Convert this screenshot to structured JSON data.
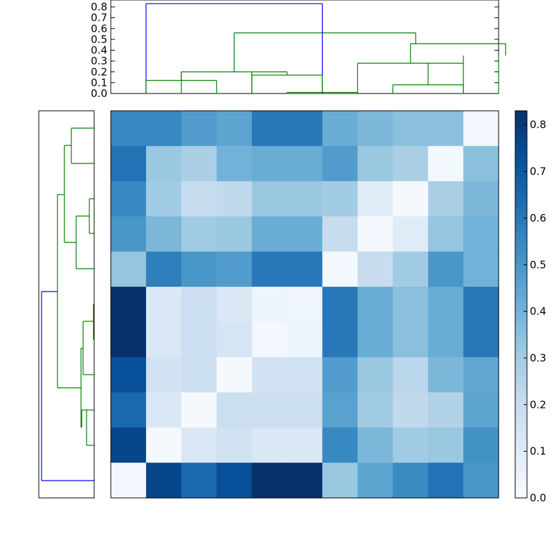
{
  "chart_data": [
    {
      "type": "heatmap",
      "rows": 11,
      "cols": 11,
      "colormap": "Blues",
      "vmin": 0.0,
      "vmax": 0.83,
      "values": [
        [
          0.55,
          0.55,
          0.48,
          0.45,
          0.6,
          0.6,
          0.42,
          0.38,
          0.35,
          0.35,
          0.02
        ],
        [
          0.62,
          0.32,
          0.28,
          0.4,
          0.42,
          0.42,
          0.48,
          0.32,
          0.28,
          0.02,
          0.35
        ],
        [
          0.55,
          0.3,
          0.2,
          0.22,
          0.32,
          0.32,
          0.3,
          0.1,
          0.01,
          0.28,
          0.38
        ],
        [
          0.5,
          0.38,
          0.3,
          0.32,
          0.42,
          0.42,
          0.2,
          0.02,
          0.1,
          0.33,
          0.4
        ],
        [
          0.33,
          0.58,
          0.5,
          0.48,
          0.6,
          0.6,
          0.02,
          0.2,
          0.3,
          0.5,
          0.4
        ],
        [
          0.83,
          0.12,
          0.18,
          0.12,
          0.04,
          0.03,
          0.6,
          0.42,
          0.35,
          0.42,
          0.6
        ],
        [
          0.83,
          0.12,
          0.18,
          0.14,
          0.02,
          0.04,
          0.6,
          0.42,
          0.35,
          0.42,
          0.6
        ],
        [
          0.73,
          0.16,
          0.18,
          0.01,
          0.16,
          0.16,
          0.48,
          0.32,
          0.24,
          0.38,
          0.44
        ],
        [
          0.65,
          0.12,
          0.01,
          0.18,
          0.18,
          0.18,
          0.46,
          0.3,
          0.22,
          0.26,
          0.45
        ],
        [
          0.76,
          0.01,
          0.12,
          0.16,
          0.12,
          0.12,
          0.55,
          0.38,
          0.3,
          0.32,
          0.52
        ],
        [
          0.02,
          0.76,
          0.65,
          0.73,
          0.83,
          0.83,
          0.32,
          0.45,
          0.54,
          0.62,
          0.5
        ]
      ]
    },
    {
      "type": "dendrogram",
      "orientation": "top",
      "ylim": [
        0,
        0.85
      ],
      "yticks": [
        "0.0",
        "0.1",
        "0.2",
        "0.3",
        "0.4",
        "0.5",
        "0.6",
        "0.7",
        "0.8"
      ],
      "links": [
        {
          "left": 1.5,
          "right": 6.5,
          "height": 0.83,
          "color": "#0000ff"
        },
        {
          "left": 4.0,
          "right": 9.15,
          "height": 0.56,
          "color": "#008000"
        },
        {
          "left": 9.0,
          "right": 11.7,
          "height": 0.46,
          "color": "#008000"
        },
        {
          "left": 7.5,
          "right": 10.5,
          "height": 0.28,
          "color": "#008000"
        },
        {
          "left": 2.5,
          "right": 5.5,
          "height": 0.2,
          "color": "#008000"
        },
        {
          "left": 4.5,
          "right": 6.5,
          "height": 0.17,
          "color": "#008000"
        },
        {
          "left": 1.5,
          "right": 3.5,
          "height": 0.12,
          "color": "#008000"
        },
        {
          "left": 8.5,
          "right": 10.5,
          "height": 0.08,
          "color": "#008000"
        },
        {
          "left": 5.5,
          "right": 7.5,
          "height": 0.01,
          "color": "#008000"
        }
      ],
      "leaf_stems": [
        {
          "x": 1.5,
          "top": 0.83,
          "color": "#0000ff"
        },
        {
          "x": 1.5,
          "top": 0.12,
          "color": "#008000"
        },
        {
          "x": 3.5,
          "top": 0.12,
          "color": "#008000"
        },
        {
          "x": 2.5,
          "top": 0.2,
          "color": "#008000"
        },
        {
          "x": 4.5,
          "top": 0.17,
          "color": "#008000"
        },
        {
          "x": 5.5,
          "top": 0.01,
          "color": "#008000"
        },
        {
          "x": 7.5,
          "top": 0.01,
          "color": "#008000"
        },
        {
          "x": 7.5,
          "top": 0.28,
          "color": "#008000"
        },
        {
          "x": 8.5,
          "top": 0.08,
          "color": "#008000"
        },
        {
          "x": 10.5,
          "top": 0.08,
          "color": "#008000"
        },
        {
          "x": 10.5,
          "top": 0.35,
          "color": "#008000"
        },
        {
          "x": 11.5,
          "top": 0.35,
          "color": "#008000"
        },
        {
          "x": 6.5,
          "top": 0.83,
          "color": "#0000ff"
        }
      ]
    },
    {
      "type": "colorbar",
      "ticks": [
        "0.0",
        "0.1",
        "0.2",
        "0.3",
        "0.4",
        "0.5",
        "0.6",
        "0.7",
        "0.8"
      ],
      "range": [
        0.0,
        0.83
      ]
    }
  ]
}
